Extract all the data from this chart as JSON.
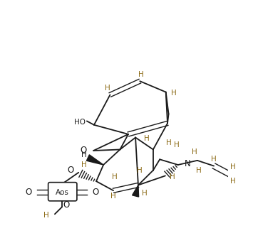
{
  "bg": "#ffffff",
  "dark": "#1a1a1a",
  "brown": "#8B6914",
  "figsize": [
    3.55,
    3.42
  ],
  "dpi": 100,
  "xlim": [
    0,
    355
  ],
  "ylim": [
    0,
    342
  ]
}
